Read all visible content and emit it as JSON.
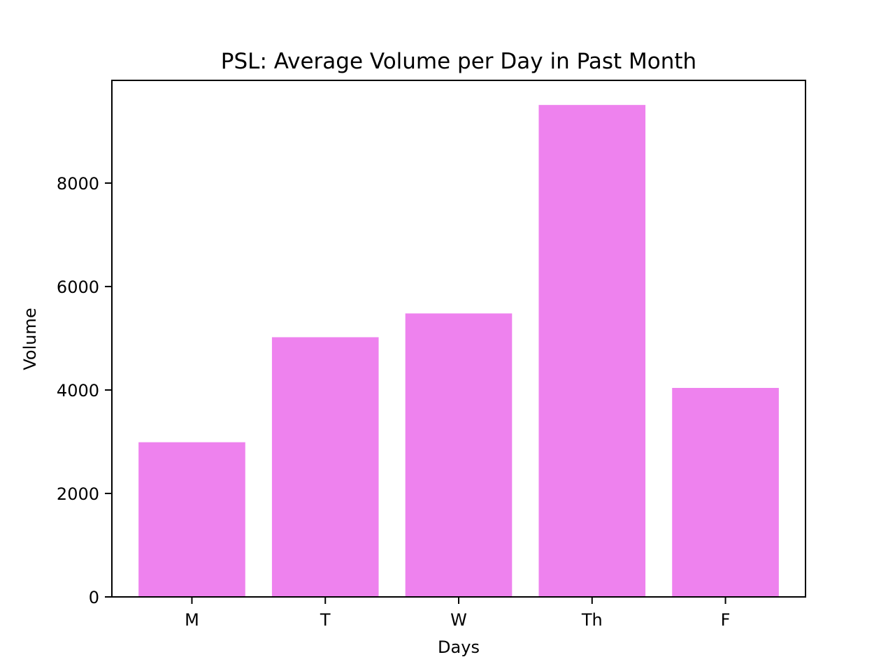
{
  "chart_data": {
    "type": "bar",
    "title": "PSL: Average Volume per Day in Past Month",
    "xlabel": "Days",
    "ylabel": "Volume",
    "categories": [
      "M",
      "T",
      "W",
      "Th",
      "F"
    ],
    "values": [
      2990,
      5020,
      5480,
      9510,
      4040
    ],
    "ylim": [
      0,
      9985
    ],
    "yticks": [
      0,
      2000,
      4000,
      6000,
      8000
    ],
    "ytick_labels": [
      "0",
      "2000",
      "4000",
      "6000",
      "8000"
    ],
    "bar_color": "#ee82ee",
    "grid": false,
    "legend": "none"
  }
}
